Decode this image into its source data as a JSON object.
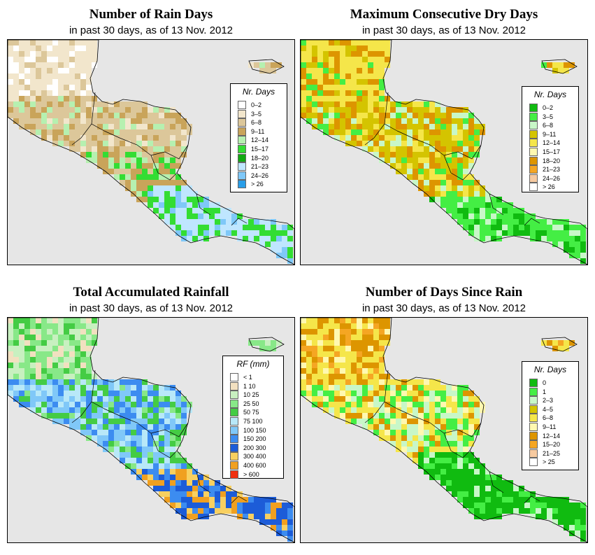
{
  "panels": [
    {
      "title": "Number of Rain Days",
      "subtitle": "in past 30 days, as of  13 Nov. 2012",
      "palette": "rain_days",
      "legend": {
        "title": "Nr. Days",
        "items": [
          {
            "label": "0–2",
            "color": "#ffffff"
          },
          {
            "label": "3–5",
            "color": "#f2e6cc"
          },
          {
            "label": "6–8",
            "color": "#dcc79a"
          },
          {
            "label": "9–11",
            "color": "#c9a45a"
          },
          {
            "label": "12–14",
            "color": "#b6f0b0"
          },
          {
            "label": "15–17",
            "color": "#33dd33"
          },
          {
            "label": "18–20",
            "color": "#11aa11"
          },
          {
            "label": "21–23",
            "color": "#bfe6ff"
          },
          {
            "label": "24–26",
            "color": "#7fc8f8"
          },
          {
            "label": "> 26",
            "color": "#2a9ee8"
          }
        ]
      }
    },
    {
      "title": "Maximum Consecutive Dry Days",
      "subtitle": "in past 30 days, as of  13 Nov. 2012",
      "palette": "dry_days",
      "legend": {
        "title": "Nr. Days",
        "items": [
          {
            "label": "0–2",
            "color": "#10bb10"
          },
          {
            "label": "3–5",
            "color": "#44ee44"
          },
          {
            "label": "6–8",
            "color": "#c8f7c8"
          },
          {
            "label": "9–11",
            "color": "#d4c400"
          },
          {
            "label": "12–14",
            "color": "#f5e64a"
          },
          {
            "label": "15–17",
            "color": "#fff8b0"
          },
          {
            "label": "18–20",
            "color": "#dd9500"
          },
          {
            "label": "21–23",
            "color": "#f5a623"
          },
          {
            "label": "24–26",
            "color": "#f7caa0"
          },
          {
            "label": "> 26",
            "color": "#ffffff"
          }
        ]
      }
    },
    {
      "title": "Total Accumulated Rainfall",
      "subtitle": "in past 30 days, as of  13 Nov. 2012",
      "palette": "rainfall",
      "legend": {
        "title": "RF (mm)",
        "items": [
          {
            "label": "< 1",
            "color": "#ffffff"
          },
          {
            "label": "1  10",
            "color": "#f2e0c0"
          },
          {
            "label": "10  25",
            "color": "#c8f0c0"
          },
          {
            "label": "25  50",
            "color": "#88e888"
          },
          {
            "label": "50  75",
            "color": "#44cc44"
          },
          {
            "label": "75  100",
            "color": "#b8e8f8"
          },
          {
            "label": "100  150",
            "color": "#80c8f8"
          },
          {
            "label": "150  200",
            "color": "#3c8cf0"
          },
          {
            "label": "200  300",
            "color": "#1c5cd8"
          },
          {
            "label": "300  400",
            "color": "#f8d060"
          },
          {
            "label": "400  600",
            "color": "#f0a020"
          },
          {
            "label": "> 600",
            "color": "#f03010"
          }
        ]
      }
    },
    {
      "title": "Number of Days Since Rain",
      "subtitle": "in past 30 days, as of  13 Nov. 2012",
      "palette": "since_rain",
      "legend": {
        "title": "Nr. Days",
        "items": [
          {
            "label": "0",
            "color": "#10bb10"
          },
          {
            "label": "1",
            "color": "#44ee44"
          },
          {
            "label": "2–3",
            "color": "#c8f7c8"
          },
          {
            "label": "4–5",
            "color": "#d4c400"
          },
          {
            "label": "6–8",
            "color": "#f5e64a"
          },
          {
            "label": "9–11",
            "color": "#fff8b0"
          },
          {
            "label": "12–14",
            "color": "#dd9500"
          },
          {
            "label": "15–20",
            "color": "#f5a623"
          },
          {
            "label": "21–25",
            "color": "#f7caa0"
          },
          {
            "label": "> 25",
            "color": "#ffffff"
          }
        ]
      }
    }
  ]
}
